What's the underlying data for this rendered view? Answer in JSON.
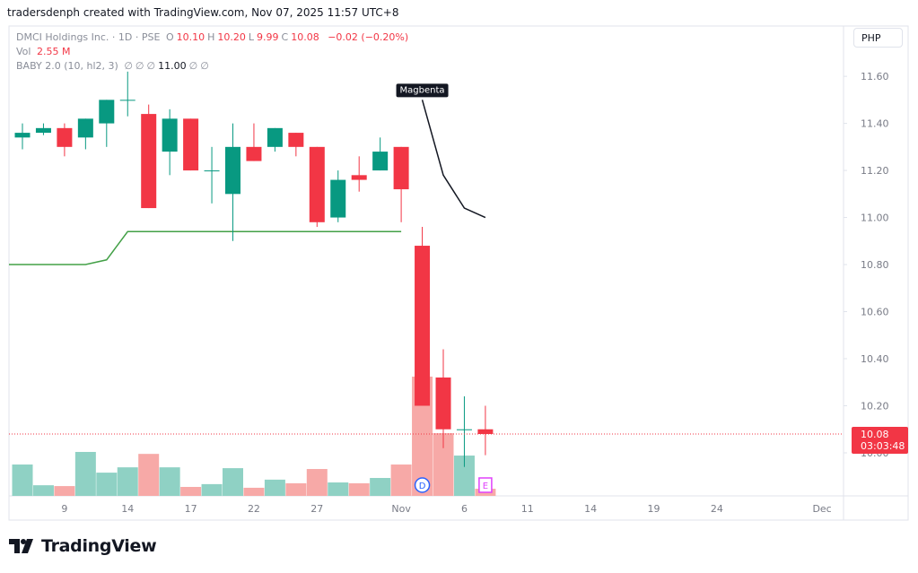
{
  "header": {
    "credit": "tradersdenph created with TradingView.com, Nov 07, 2025 11:57 UTC+8",
    "symbol": "DMCI Holdings Inc. · 1D · PSE",
    "ohlc": [
      {
        "key": "O",
        "value": "10.10"
      },
      {
        "key": "H",
        "value": "10.20"
      },
      {
        "key": "L",
        "value": "9.99"
      },
      {
        "key": "C",
        "value": "10.08"
      }
    ],
    "change": "−0.02 (−0.20%)",
    "volume": {
      "label": "Vol",
      "value": "2.55 M"
    },
    "indicator": {
      "name": "BABY 2.0 (10, hl2, 3)",
      "values": [
        "∅",
        "∅",
        "∅",
        "11.00",
        "∅",
        "∅"
      ]
    },
    "currency": "PHP",
    "logo": "TradingView"
  },
  "chart_data": {
    "type": "candlestick",
    "categories": [
      null,
      null,
      "9",
      null,
      null,
      "14",
      null,
      null,
      "17",
      null,
      null,
      "22",
      null,
      null,
      "27",
      null,
      null,
      null,
      "Nov",
      null,
      null,
      "6",
      null,
      null,
      "11",
      null,
      null,
      "14",
      null,
      null,
      "19",
      null,
      null,
      "24",
      null,
      null,
      null,
      null,
      "Dec"
    ],
    "open": [
      11.34,
      11.36,
      11.38,
      11.34,
      11.4,
      11.5,
      11.44,
      11.28,
      11.42,
      11.2,
      11.1,
      11.3,
      11.3,
      11.36,
      11.3,
      11.0,
      11.18,
      11.2,
      11.3,
      10.88,
      10.32,
      10.1,
      10.1,
      null,
      null,
      null,
      null,
      null,
      null,
      null,
      null,
      null,
      null,
      null,
      null,
      null,
      null,
      null,
      null
    ],
    "high": [
      11.4,
      11.4,
      11.4,
      11.42,
      11.5,
      11.62,
      11.48,
      11.46,
      11.42,
      11.3,
      11.4,
      11.4,
      11.38,
      11.36,
      11.3,
      11.2,
      11.26,
      11.34,
      11.3,
      10.96,
      10.44,
      10.24,
      10.2,
      null,
      null,
      null,
      null,
      null,
      null,
      null,
      null,
      null,
      null,
      null,
      null,
      null,
      null,
      null,
      null
    ],
    "low": [
      11.29,
      11.35,
      11.26,
      11.29,
      11.3,
      11.43,
      11.04,
      11.18,
      11.2,
      11.06,
      10.9,
      11.24,
      11.28,
      11.26,
      10.96,
      10.98,
      11.11,
      11.2,
      10.98,
      10.2,
      10.02,
      9.94,
      9.99,
      null,
      null,
      null,
      null,
      null,
      null,
      null,
      null,
      null,
      null,
      null,
      null,
      null,
      null,
      null,
      null
    ],
    "close": [
      11.36,
      11.38,
      11.3,
      11.42,
      11.5,
      11.5,
      11.04,
      11.42,
      11.2,
      11.2,
      11.3,
      11.24,
      11.38,
      11.3,
      10.98,
      11.16,
      11.16,
      11.28,
      11.12,
      10.2,
      10.1,
      10.1,
      10.08,
      null,
      null,
      null,
      null,
      null,
      null,
      null,
      null,
      null,
      null,
      null,
      null,
      null,
      null,
      null,
      null
    ],
    "volume": [
      11.2,
      3.8,
      3.5,
      15.7,
      8.3,
      10.2,
      15.0,
      10.2,
      3.2,
      4.2,
      9.9,
      2.9,
      5.8,
      4.5,
      9.6,
      4.8,
      4.5,
      6.4,
      11.2,
      42.6,
      22.4,
      14.4,
      2.55,
      null,
      null,
      null,
      null,
      null,
      null,
      null,
      null,
      null,
      null,
      null,
      null,
      null,
      null,
      null,
      null
    ],
    "up_color": "#089981",
    "down_color": "#f23645",
    "up_volume_color": "#8fd1c4",
    "down_volume_color": "#f7a9a7",
    "lines": [
      {
        "name": "BABY 2.0",
        "color": "#43a047",
        "values": [
          10.8,
          10.8,
          10.8,
          10.8,
          10.82,
          10.94,
          10.94,
          10.94,
          10.94,
          10.94,
          10.94,
          10.94,
          10.94,
          10.94,
          10.94,
          10.94,
          10.94,
          10.94,
          10.94,
          null,
          null,
          null,
          null,
          null,
          null,
          null,
          null,
          null,
          null,
          null,
          null,
          null,
          null,
          null,
          null,
          null,
          null,
          null,
          null
        ]
      },
      {
        "name": "Magbenta",
        "color": "#131722",
        "values": [
          null,
          null,
          null,
          null,
          null,
          null,
          null,
          null,
          null,
          null,
          null,
          null,
          null,
          null,
          null,
          null,
          null,
          null,
          null,
          11.5,
          11.18,
          11.04,
          11.0,
          null,
          null,
          null,
          null,
          null,
          null,
          null,
          null,
          null,
          null,
          null,
          null,
          null,
          null,
          null,
          null
        ]
      }
    ],
    "ylim": [
      9.817,
      11.81
    ],
    "yticks": [
      {
        "value": 10,
        "label": "10.00"
      },
      {
        "value": 10.2,
        "label": "10.20"
      },
      {
        "value": 10.4,
        "label": "10.40"
      },
      {
        "value": 10.6,
        "label": "10.60"
      },
      {
        "value": 10.8,
        "label": "10.80"
      },
      {
        "value": 11,
        "label": "11.00"
      },
      {
        "value": 11.2,
        "label": "11.20"
      },
      {
        "value": 11.4,
        "label": "11.40"
      },
      {
        "value": 11.6,
        "label": "11.60"
      }
    ],
    "last_price_label": "10.08",
    "countdown": "03:03:48",
    "event_markers": [
      "D",
      "E"
    ]
  }
}
